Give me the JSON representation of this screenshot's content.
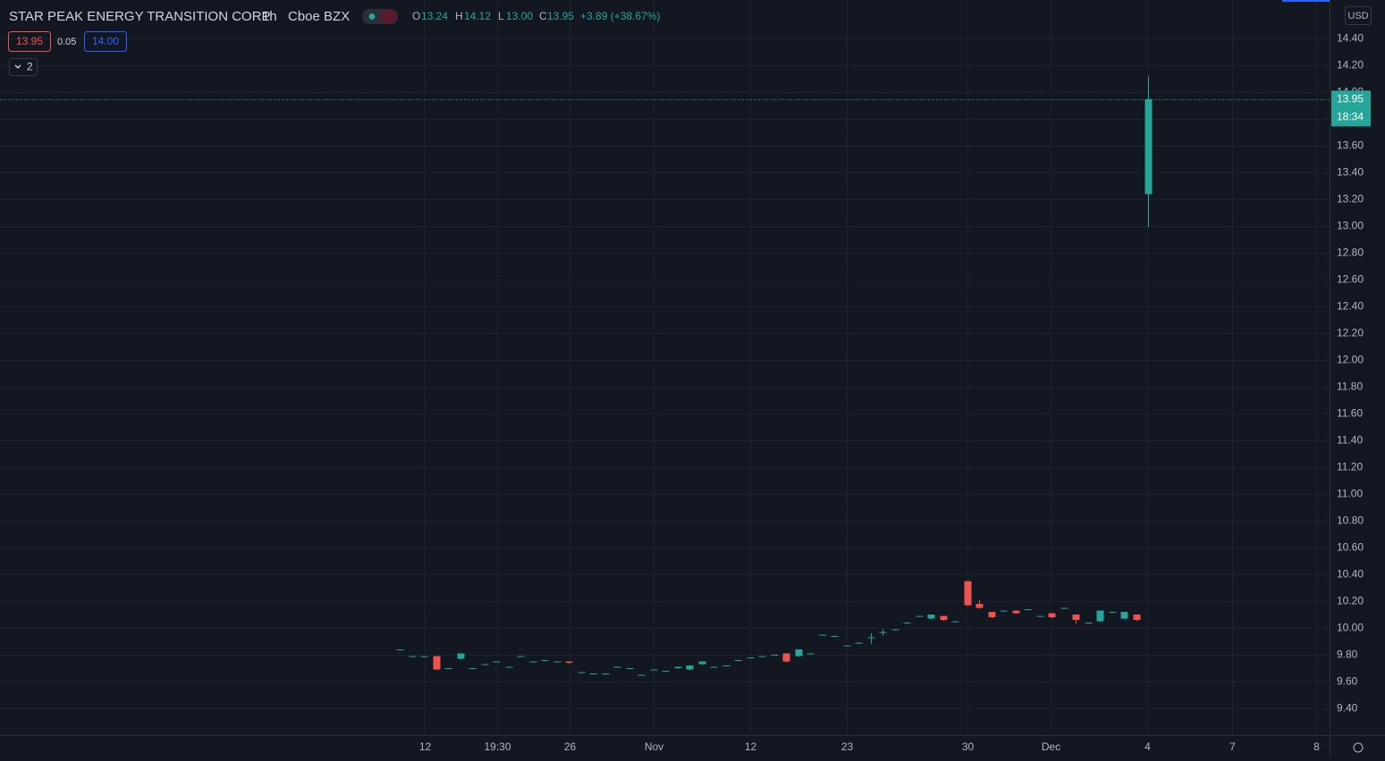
{
  "header": {
    "symbol": "STAR PEAK ENERGY TRANSITION CORP",
    "interval": "1h",
    "exchange": "Cboe BZX",
    "ohlc": [
      {
        "key": "O",
        "value": "13.24"
      },
      {
        "key": "H",
        "value": "14.12"
      },
      {
        "key": "L",
        "value": "13.00"
      },
      {
        "key": "C",
        "value": "13.95"
      }
    ],
    "change": "+3.89 (+38.67%)",
    "bid": "13.95",
    "spread": "0.05",
    "ask": "14.00",
    "indicators": "2",
    "currency": "USD",
    "last_price_label": "13.95",
    "countdown": "18:34"
  },
  "chart_data": {
    "type": "candlestick",
    "up_color": "#26a69a",
    "down_color": "#ef5350",
    "grid": true,
    "open": [
      9.84,
      9.79,
      9.79,
      9.79,
      9.7,
      9.77,
      9.7,
      9.73,
      9.75,
      9.71,
      9.79,
      9.75,
      9.76,
      9.75,
      9.75,
      9.67,
      9.66,
      9.66,
      9.71,
      9.7,
      9.65,
      9.69,
      9.68,
      9.7,
      9.69,
      9.73,
      9.71,
      9.72,
      9.76,
      9.78,
      9.79,
      9.8,
      9.81,
      9.79,
      9.81,
      9.95,
      9.94,
      9.87,
      9.89,
      9.93,
      9.97,
      9.99,
      10.04,
      10.09,
      10.07,
      10.09,
      10.05,
      10.35,
      10.18,
      10.12,
      10.13,
      10.13,
      10.14,
      10.09,
      10.11,
      10.15,
      10.1,
      10.04,
      10.05,
      10.12,
      10.07,
      10.1,
      13.24
    ],
    "high": [
      9.84,
      9.79,
      9.79,
      9.79,
      9.7,
      9.81,
      9.7,
      9.73,
      9.75,
      9.71,
      9.79,
      9.75,
      9.76,
      9.75,
      9.75,
      9.67,
      9.66,
      9.66,
      9.71,
      9.7,
      9.65,
      9.69,
      9.68,
      9.71,
      9.72,
      9.75,
      9.71,
      9.72,
      9.76,
      9.78,
      9.79,
      9.8,
      9.81,
      9.84,
      9.81,
      9.95,
      9.94,
      9.87,
      9.89,
      9.96,
      9.99,
      9.99,
      10.04,
      10.09,
      10.1,
      10.09,
      10.05,
      10.35,
      10.21,
      10.12,
      10.13,
      10.13,
      10.14,
      10.09,
      10.11,
      10.15,
      10.1,
      10.04,
      10.13,
      10.12,
      10.12,
      10.1,
      14.12
    ],
    "low": [
      9.84,
      9.79,
      9.79,
      9.69,
      9.7,
      9.77,
      9.7,
      9.73,
      9.75,
      9.71,
      9.79,
      9.75,
      9.76,
      9.75,
      9.74,
      9.67,
      9.66,
      9.66,
      9.71,
      9.7,
      9.65,
      9.69,
      9.68,
      9.7,
      9.69,
      9.73,
      9.71,
      9.72,
      9.76,
      9.78,
      9.79,
      9.8,
      9.75,
      9.79,
      9.81,
      9.95,
      9.94,
      9.87,
      9.89,
      9.89,
      9.95,
      9.99,
      10.04,
      10.09,
      10.07,
      10.06,
      10.05,
      10.17,
      10.15,
      10.08,
      10.13,
      10.11,
      10.14,
      10.09,
      10.08,
      10.15,
      10.04,
      10.04,
      10.05,
      10.12,
      10.07,
      10.06,
      13.0
    ],
    "close": [
      9.84,
      9.79,
      9.79,
      9.69,
      9.7,
      9.81,
      9.7,
      9.73,
      9.75,
      9.71,
      9.79,
      9.75,
      9.76,
      9.75,
      9.74,
      9.67,
      9.66,
      9.66,
      9.71,
      9.7,
      9.65,
      9.69,
      9.68,
      9.71,
      9.72,
      9.75,
      9.71,
      9.72,
      9.76,
      9.78,
      9.79,
      9.8,
      9.75,
      9.84,
      9.81,
      9.95,
      9.94,
      9.87,
      9.89,
      9.93,
      9.97,
      9.99,
      10.04,
      10.09,
      10.1,
      10.06,
      10.05,
      10.17,
      10.15,
      10.08,
      10.13,
      10.11,
      10.14,
      10.09,
      10.08,
      10.15,
      10.06,
      10.04,
      10.13,
      10.12,
      10.12,
      10.06,
      13.95
    ],
    "xlim": [
      -33.1,
      77.0
    ],
    "xticks": [
      {
        "value": 2.1,
        "label": "12"
      },
      {
        "value": 8.1,
        "label": "19:30"
      },
      {
        "value": 14.1,
        "label": "26"
      },
      {
        "value": 21.0,
        "label": "Nov"
      },
      {
        "value": 29.0,
        "label": "12"
      },
      {
        "value": 37.0,
        "label": "23"
      },
      {
        "value": 47.0,
        "label": "30"
      },
      {
        "value": 53.9,
        "label": "Dec"
      },
      {
        "value": 61.9,
        "label": "4"
      },
      {
        "value": 68.9,
        "label": "7"
      },
      {
        "value": 75.9,
        "label": "8"
      }
    ],
    "ylim": [
      9.2,
      14.69
    ],
    "yticks": [
      {
        "value": 9.4,
        "label": "9.40"
      },
      {
        "value": 9.6,
        "label": "9.60"
      },
      {
        "value": 9.8,
        "label": "9.80"
      },
      {
        "value": 10.0,
        "label": "10.00"
      },
      {
        "value": 10.2,
        "label": "10.20"
      },
      {
        "value": 10.4,
        "label": "10.40"
      },
      {
        "value": 10.6,
        "label": "10.60"
      },
      {
        "value": 10.8,
        "label": "10.80"
      },
      {
        "value": 11.0,
        "label": "11.00"
      },
      {
        "value": 11.2,
        "label": "11.20"
      },
      {
        "value": 11.4,
        "label": "11.40"
      },
      {
        "value": 11.6,
        "label": "11.60"
      },
      {
        "value": 11.8,
        "label": "11.80"
      },
      {
        "value": 12.0,
        "label": "12.00"
      },
      {
        "value": 12.2,
        "label": "12.20"
      },
      {
        "value": 12.4,
        "label": "12.40"
      },
      {
        "value": 12.6,
        "label": "12.60"
      },
      {
        "value": 12.8,
        "label": "12.80"
      },
      {
        "value": 13.0,
        "label": "13.00"
      },
      {
        "value": 13.2,
        "label": "13.20"
      },
      {
        "value": 13.4,
        "label": "13.40"
      },
      {
        "value": 13.6,
        "label": "13.60"
      },
      {
        "value": 13.8,
        "label": "13.80"
      },
      {
        "value": 14.0,
        "label": "14.00"
      },
      {
        "value": 14.2,
        "label": "14.20"
      },
      {
        "value": 14.4,
        "label": "14.40"
      }
    ]
  }
}
